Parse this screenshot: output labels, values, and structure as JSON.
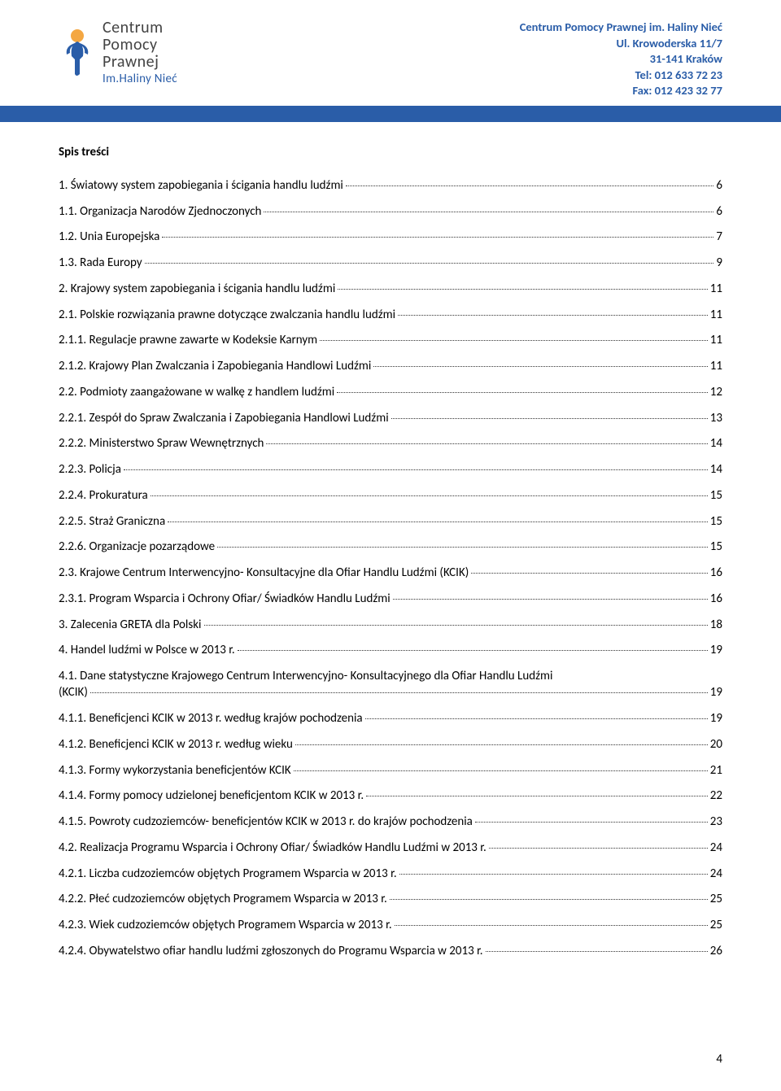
{
  "header": {
    "org_line1": "Centrum Pomocy Prawnej im. Haliny Nieć",
    "org_line2": "Ul. Krowoderska 11/7",
    "org_line3": "31-141 Kraków",
    "org_line4": "Tel: 012 633 72 23",
    "org_line5": "Fax: 012 423 32 77",
    "logo_line1": "Centrum",
    "logo_line2": "Pomocy",
    "logo_line3": "Prawnej",
    "logo_sub": "Im.Haliny Nieć",
    "logo_color_primary": "#2a5da8",
    "logo_color_accent": "#f4a742"
  },
  "toc": {
    "title": "Spis treści",
    "entries": [
      {
        "label": "1. Światowy system zapobiegania i ścigania handlu ludźmi",
        "page": "6"
      },
      {
        "label": "1.1. Organizacja Narodów Zjednoczonych",
        "page": "6"
      },
      {
        "label": "1.2. Unia Europejska",
        "page": "7"
      },
      {
        "label": "1.3. Rada Europy",
        "page": "9"
      },
      {
        "label": "2. Krajowy system zapobiegania i ścigania handlu ludźmi",
        "page": "11"
      },
      {
        "label": "2.1. Polskie rozwiązania prawne dotyczące zwalczania handlu ludźmi",
        "page": "11"
      },
      {
        "label": "2.1.1. Regulacje prawne zawarte w Kodeksie Karnym",
        "page": "11"
      },
      {
        "label": "2.1.2. Krajowy Plan Zwalczania i Zapobiegania Handlowi Ludźmi",
        "page": "11"
      },
      {
        "label": "2.2. Podmioty zaangażowane w walkę z handlem ludźmi",
        "page": "12"
      },
      {
        "label": "2.2.1. Zespół do Spraw Zwalczania i Zapobiegania Handlowi Ludźmi",
        "page": "13"
      },
      {
        "label": "2.2.2. Ministerstwo Spraw Wewnętrznych",
        "page": "14"
      },
      {
        "label": "2.2.3. Policja",
        "page": "14"
      },
      {
        "label": "2.2.4. Prokuratura",
        "page": "15"
      },
      {
        "label": "2.2.5. Straż Graniczna",
        "page": "15"
      },
      {
        "label": "2.2.6. Organizacje pozarządowe",
        "page": "15"
      },
      {
        "label": "2.3. Krajowe Centrum Interwencyjno- Konsultacyjne dla Ofiar Handlu Ludźmi (KCIK)",
        "page": "16"
      },
      {
        "label": "2.3.1. Program Wsparcia i Ochrony Ofiar/ Świadków Handlu Ludźmi",
        "page": "16"
      },
      {
        "label": "3. Zalecenia GRETA dla Polski",
        "page": "18"
      },
      {
        "label": "4. Handel ludźmi w Polsce w 2013 r.",
        "page": "19"
      },
      {
        "label_prefix": "4.1. Dane statystyczne Krajowego Centrum Interwencyjno- Konsultacyjnego dla Ofiar Handlu Ludźmi",
        "label_last": "(KCIK)",
        "page": "19",
        "multiline": true
      },
      {
        "label": "4.1.1. Beneficjenci KCIK w 2013 r. według krajów pochodzenia",
        "page": "19"
      },
      {
        "label": "4.1.2. Beneficjenci KCIK w 2013 r. według wieku",
        "page": "20"
      },
      {
        "label": "4.1.3. Formy wykorzystania beneficjentów KCIK",
        "page": "21"
      },
      {
        "label": "4.1.4. Formy pomocy udzielonej beneficjentom KCIK w 2013 r.",
        "page": "22"
      },
      {
        "label": "4.1.5. Powroty cudzoziemców- beneficjentów KCIK w 2013 r. do krajów pochodzenia",
        "page": "23"
      },
      {
        "label": "4.2. Realizacja Programu Wsparcia i Ochrony Ofiar/ Świadków Handlu Ludźmi w 2013 r.",
        "page": "24"
      },
      {
        "label": "4.2.1. Liczba cudzoziemców objętych Programem Wsparcia w 2013 r.",
        "page": "24"
      },
      {
        "label": "4.2.2. Płeć cudzoziemców objętych Programem Wsparcia w 2013 r.",
        "page": "25"
      },
      {
        "label": "4.2.3. Wiek cudzoziemców objętych Programem Wsparcia w 2013 r.",
        "page": "25"
      },
      {
        "label": "4.2.4. Obywatelstwo ofiar handlu ludźmi zgłoszonych do Programu Wsparcia w 2013 r.",
        "page": "26"
      }
    ]
  },
  "page_number": "4"
}
